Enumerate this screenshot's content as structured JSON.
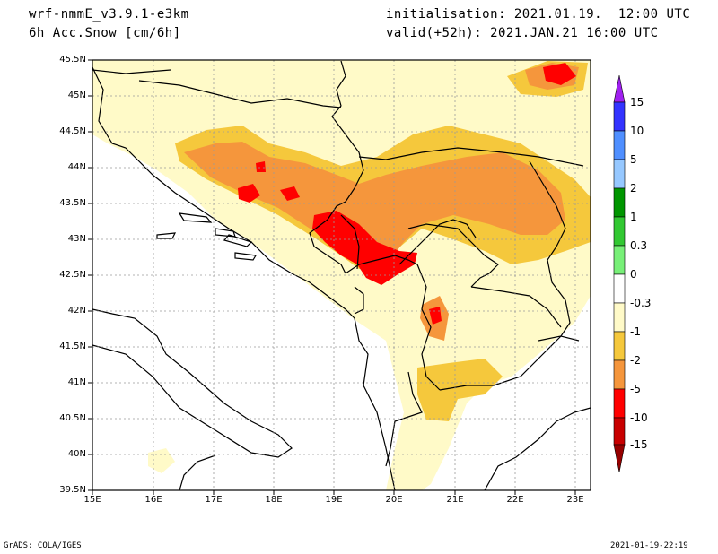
{
  "header": {
    "model": "wrf-nmmE_v3.9.1-e3km",
    "variable": "6h Acc.Snow [cm/6h]",
    "init": "initialisation: 2021.01.19.  12:00 UTC",
    "valid": "valid(+52h): 2021.JAN.21 16:00 UTC"
  },
  "map": {
    "lat_labels": [
      "45.5N",
      "45N",
      "44.5N",
      "44N",
      "43.5N",
      "43N",
      "42.5N",
      "42N",
      "41.5N",
      "41N",
      "40.5N",
      "40N",
      "39.5N"
    ],
    "lon_labels": [
      "15E",
      "16E",
      "17E",
      "18E",
      "19E",
      "20E",
      "21E",
      "22E",
      "23E"
    ],
    "lat_range": [
      39.5,
      45.5
    ],
    "lon_range": [
      15,
      23.25
    ],
    "grid": true
  },
  "colorbar": {
    "labels": [
      "15",
      "10",
      "5",
      "2",
      "1",
      "0.3",
      "0",
      "-0.3",
      "-1",
      "-2",
      "-5",
      "-10",
      "-15"
    ],
    "colors": [
      "#a020f0",
      "#3333ff",
      "#4f8fff",
      "#96c8ff",
      "#009600",
      "#32c832",
      "#78f078",
      "#ffffff",
      "#fffac8",
      "#f5c83c",
      "#f5963c",
      "#ff0000",
      "#c80000",
      "#960000"
    ]
  },
  "footer": {
    "left": "GrADS: COLA/IGES",
    "right": "2021-01-19-22:19"
  }
}
